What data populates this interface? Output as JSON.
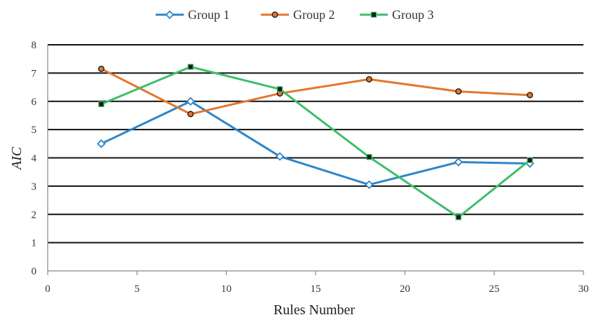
{
  "chart_data": {
    "type": "line",
    "title": "",
    "xlabel": "Rules Number",
    "ylabel": "AIC",
    "xlim": [
      0,
      30
    ],
    "ylim": [
      0,
      8
    ],
    "xticks": [
      0,
      5,
      10,
      15,
      20,
      25,
      30
    ],
    "yticks": [
      0,
      1,
      2,
      3,
      4,
      5,
      6,
      7,
      8
    ],
    "grid": "horizontal",
    "legend_position": "top-center",
    "series": [
      {
        "name": "Group 1",
        "color": "#2e86c9",
        "marker": "diamond",
        "x": [
          3,
          8,
          13,
          18,
          23,
          27
        ],
        "y": [
          4.5,
          6.0,
          4.05,
          3.05,
          3.85,
          3.8
        ]
      },
      {
        "name": "Group 2",
        "color": "#e3772b",
        "marker": "circle",
        "x": [
          3,
          8,
          13,
          18,
          23,
          27
        ],
        "y": [
          7.15,
          5.55,
          6.28,
          6.78,
          6.35,
          6.22
        ]
      },
      {
        "name": "Group 3",
        "color": "#3cbf6b",
        "marker": "square",
        "x": [
          3,
          8,
          13,
          18,
          23,
          27
        ],
        "y": [
          5.9,
          7.22,
          6.43,
          4.03,
          1.9,
          3.92
        ]
      }
    ]
  }
}
